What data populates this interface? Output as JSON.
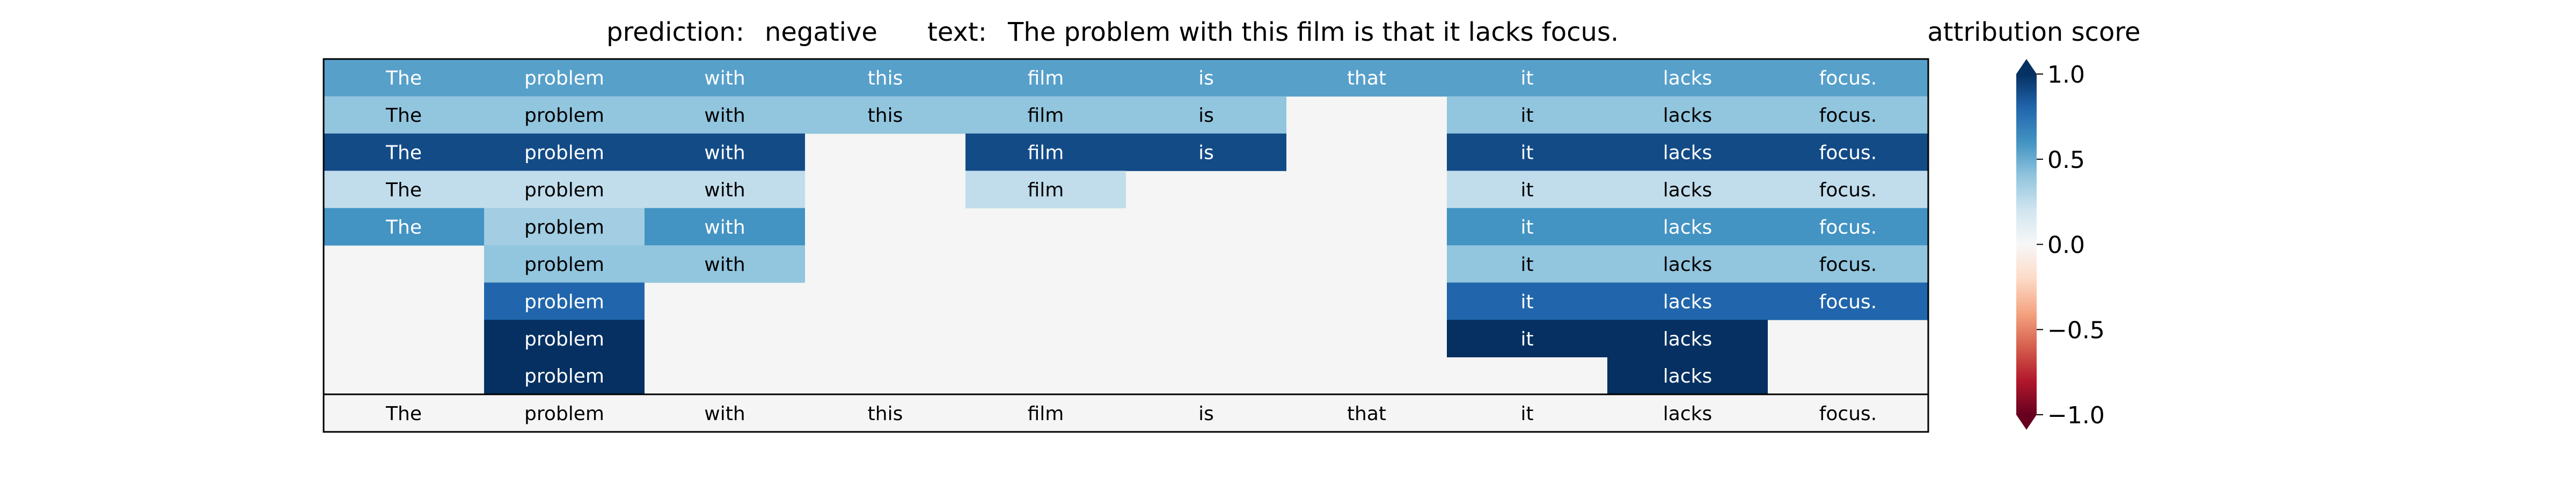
{
  "chart_data": {
    "type": "heatmap",
    "title": {
      "prediction_label": "prediction:",
      "prediction_value": "negative",
      "text_label": "text:",
      "text_value": "The problem with this film is that it lacks focus."
    },
    "tokens": [
      "The",
      "problem",
      "with",
      "this",
      "film",
      "is",
      "that",
      "it",
      "lacks",
      "focus."
    ],
    "rows": [
      [
        0.55,
        0.55,
        0.55,
        0.55,
        0.55,
        0.55,
        0.55,
        0.55,
        0.55,
        0.55
      ],
      [
        0.4,
        0.4,
        0.4,
        0.4,
        0.4,
        0.4,
        null,
        0.4,
        0.4,
        0.4
      ],
      [
        0.9,
        0.9,
        0.9,
        null,
        0.9,
        0.9,
        null,
        0.9,
        0.9,
        0.9
      ],
      [
        0.25,
        0.25,
        0.25,
        null,
        0.25,
        null,
        null,
        0.25,
        0.25,
        0.25
      ],
      [
        0.6,
        0.35,
        0.6,
        null,
        null,
        null,
        null,
        0.6,
        0.6,
        0.6
      ],
      [
        null,
        0.4,
        0.4,
        null,
        null,
        null,
        null,
        0.4,
        0.4,
        0.4
      ],
      [
        null,
        0.8,
        null,
        null,
        null,
        null,
        null,
        0.8,
        0.8,
        0.8
      ],
      [
        null,
        1.0,
        null,
        null,
        null,
        null,
        null,
        1.0,
        1.0,
        null
      ],
      [
        null,
        1.0,
        null,
        null,
        null,
        null,
        null,
        null,
        1.0,
        null
      ]
    ],
    "empty_cell_color": "#f4f5f4",
    "colorbar": {
      "title": "attribution score",
      "ticks": [
        1.0,
        0.5,
        0.0,
        -0.5,
        -1.0
      ],
      "tick_labels": [
        "1.0",
        "0.5",
        "0.0",
        "−0.5",
        "−1.0"
      ],
      "range": [
        -1.0,
        1.0
      ],
      "colormap": "RdBu",
      "extend": "both"
    }
  }
}
